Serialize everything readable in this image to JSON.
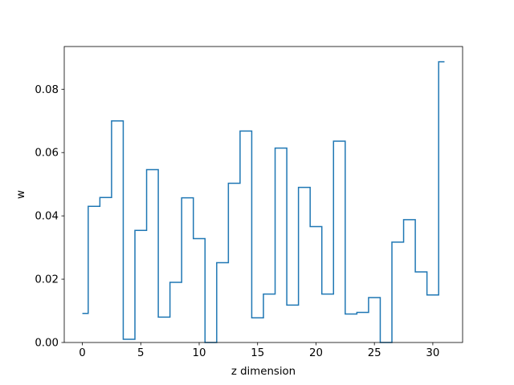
{
  "chart_data": {
    "type": "step",
    "title": "",
    "xlabel": "z dimension",
    "ylabel": "w",
    "xlim": [
      -1.55,
      32.55
    ],
    "ylim": [
      0.0,
      0.0935
    ],
    "x": [
      0,
      1,
      2,
      3,
      4,
      5,
      6,
      7,
      8,
      9,
      10,
      11,
      12,
      13,
      14,
      15,
      16,
      17,
      18,
      19,
      20,
      21,
      22,
      23,
      24,
      25,
      26,
      27,
      28,
      29,
      30,
      31
    ],
    "values": [
      0.0092,
      0.043,
      0.0458,
      0.07,
      0.001,
      0.0354,
      0.0546,
      0.008,
      0.019,
      0.0457,
      0.0328,
      0.0,
      0.0252,
      0.0503,
      0.0668,
      0.0078,
      0.0153,
      0.0614,
      0.0118,
      0.049,
      0.0366,
      0.0153,
      0.0636,
      0.009,
      0.0095,
      0.0142,
      0.0,
      0.0317,
      0.0388,
      0.0223,
      0.015,
      0.0887
    ],
    "xticks": [
      0,
      5,
      10,
      15,
      20,
      25,
      30
    ],
    "xtick_labels": [
      "0",
      "5",
      "10",
      "15",
      "20",
      "25",
      "30"
    ],
    "yticks": [
      0.0,
      0.02,
      0.04,
      0.06,
      0.08
    ],
    "ytick_labels": [
      "0.00",
      "0.02",
      "0.04",
      "0.06",
      "0.08"
    ],
    "grid": false,
    "line_color": "#1f77b4",
    "axis_color": "#000000"
  }
}
